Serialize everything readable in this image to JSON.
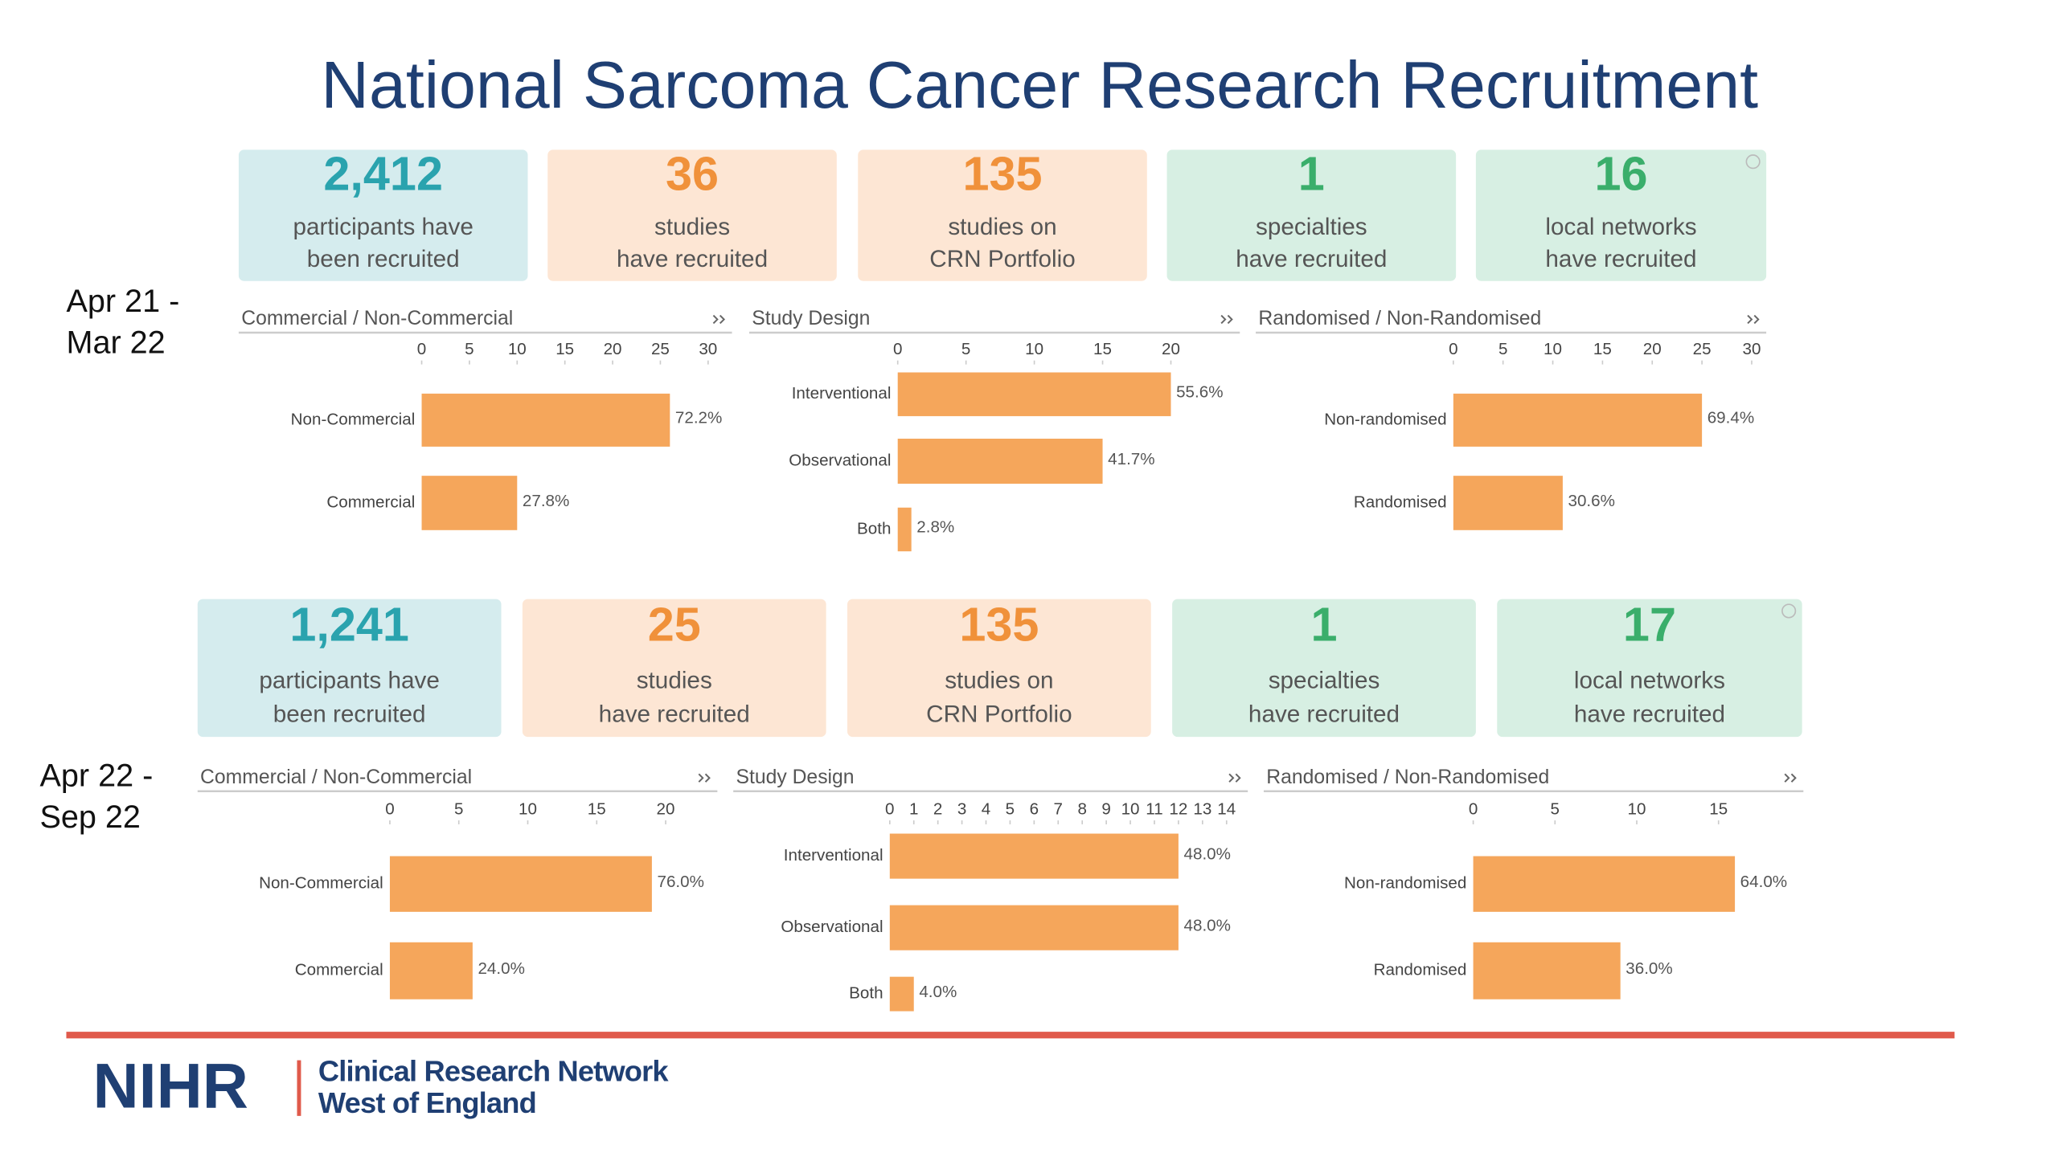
{
  "title": "National Sarcoma Cancer Research Recruitment",
  "sections": [
    {
      "period": [
        "Apr 21 -",
        "Mar 22"
      ],
      "kpis": [
        {
          "value": "2,412",
          "label": [
            "participants have",
            "been recruited"
          ]
        },
        {
          "value": "36",
          "label": [
            "studies",
            "have recruited"
          ]
        },
        {
          "value": "135",
          "label": [
            "studies on",
            "CRN Portfolio"
          ]
        },
        {
          "value": "1",
          "label": [
            "specialties",
            "have recruited"
          ]
        },
        {
          "value": "16",
          "label": [
            "local networks",
            "have recruited"
          ]
        }
      ]
    },
    {
      "period": [
        "Apr 22 -",
        "Sep 22"
      ],
      "kpis": [
        {
          "value": "1,241",
          "label": [
            "participants have",
            "been recruited"
          ]
        },
        {
          "value": "25",
          "label": [
            "studies",
            "have recruited"
          ]
        },
        {
          "value": "135",
          "label": [
            "studies on",
            "CRN Portfolio"
          ]
        },
        {
          "value": "1",
          "label": [
            "specialties",
            "have recruited"
          ]
        },
        {
          "value": "17",
          "label": [
            "local networks",
            "have recruited"
          ]
        }
      ]
    }
  ],
  "chart_data": [
    {
      "type": "bar",
      "orientation": "horizontal",
      "title": "Commercial / Non-Commercial",
      "color": "#f5a65b",
      "categories": [
        "Non-Commercial",
        "Commercial"
      ],
      "values": [
        26,
        10
      ],
      "share_labels": [
        "72.2%",
        "27.8%"
      ],
      "xlim": [
        0,
        30
      ],
      "xticks": [
        0,
        5,
        10,
        15,
        20,
        25,
        30
      ]
    },
    {
      "type": "bar",
      "orientation": "horizontal",
      "title": "Study Design",
      "color": "#f5a65b",
      "categories": [
        "Interventional",
        "Observational",
        "Both"
      ],
      "values": [
        20,
        15,
        1
      ],
      "share_labels": [
        "55.6%",
        "41.7%",
        "2.8%"
      ],
      "xlim": [
        0,
        20
      ],
      "xticks": [
        0,
        5,
        10,
        15,
        20
      ]
    },
    {
      "type": "bar",
      "orientation": "horizontal",
      "title": "Randomised / Non-Randomised",
      "color": "#f5a65b",
      "categories": [
        "Non-randomised",
        "Randomised"
      ],
      "values": [
        25,
        11
      ],
      "share_labels": [
        "69.4%",
        "30.6%"
      ],
      "xlim": [
        0,
        30
      ],
      "xticks": [
        0,
        5,
        10,
        15,
        20,
        25,
        30
      ]
    },
    {
      "type": "bar",
      "orientation": "horizontal",
      "title": "Commercial / Non-Commercial",
      "color": "#f5a65b",
      "categories": [
        "Non-Commercial",
        "Commercial"
      ],
      "values": [
        19,
        6
      ],
      "share_labels": [
        "76.0%",
        "24.0%"
      ],
      "xlim": [
        0,
        20
      ],
      "xticks": [
        0,
        5,
        10,
        15,
        20
      ]
    },
    {
      "type": "bar",
      "orientation": "horizontal",
      "title": "Study Design",
      "color": "#f5a65b",
      "categories": [
        "Interventional",
        "Observational",
        "Both"
      ],
      "values": [
        12,
        12,
        1
      ],
      "share_labels": [
        "48.0%",
        "48.0%",
        "4.0%"
      ],
      "xlim": [
        0,
        14
      ],
      "xticks": [
        0,
        1,
        2,
        3,
        4,
        5,
        6,
        7,
        8,
        9,
        10,
        11,
        12,
        13,
        14
      ]
    },
    {
      "type": "bar",
      "orientation": "horizontal",
      "title": "Randomised / Non-Randomised",
      "color": "#f5a65b",
      "categories": [
        "Non-randomised",
        "Randomised"
      ],
      "values": [
        16,
        9
      ],
      "share_labels": [
        "64.0%",
        "36.0%"
      ],
      "xlim": [
        0,
        15
      ],
      "xticks": [
        0,
        5,
        10,
        15
      ]
    }
  ],
  "footer": {
    "logo": "NIHR",
    "network": [
      "Clinical Research Network",
      "West of England"
    ]
  }
}
